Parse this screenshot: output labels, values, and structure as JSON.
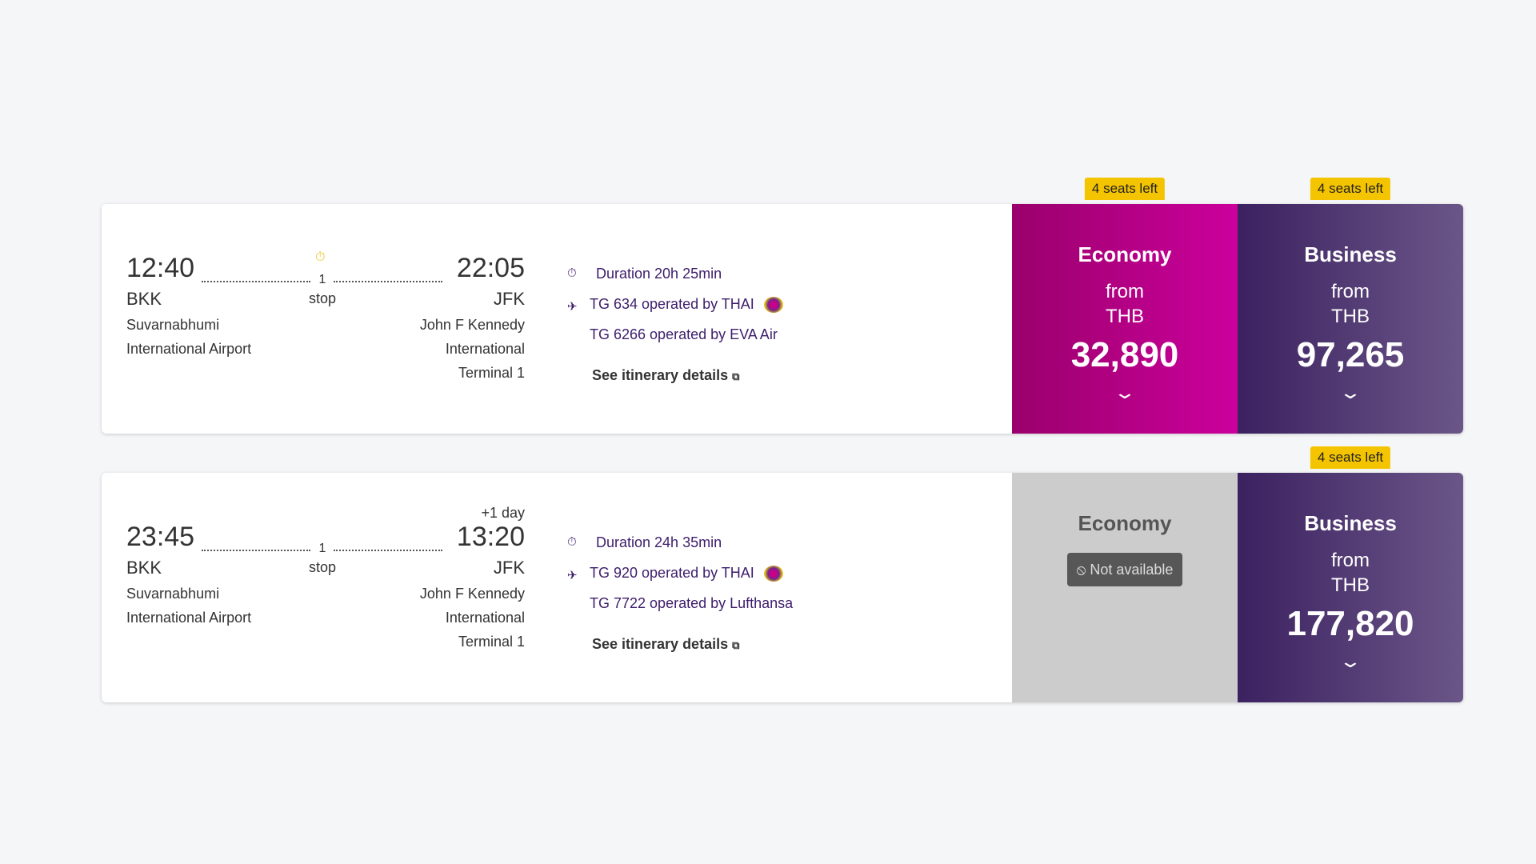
{
  "flights": [
    {
      "dep_time": "12:40",
      "dep_code": "BKK",
      "dep_airport_1": "Suvarnabhumi",
      "dep_airport_2": "International Airport",
      "arr_time": "22:05",
      "arr_code": "JFK",
      "arr_airport_1": "John F Kennedy",
      "arr_airport_2": "International",
      "arr_terminal": "Terminal 1",
      "day_offset": "",
      "stops": "1",
      "stops_label": "stop",
      "duration": "Duration 20h 25min",
      "flight_1": "TG 634 operated by THAI",
      "flight_2": "TG 6266 operated by EVA Air",
      "details_link": "See itinerary details",
      "economy": {
        "title": "Economy",
        "from": "from",
        "currency": "THB",
        "price": "32,890",
        "seats": "4 seats left"
      },
      "business": {
        "title": "Business",
        "from": "from",
        "currency": "THB",
        "price": "97,265",
        "seats": "4 seats left"
      }
    },
    {
      "dep_time": "23:45",
      "dep_code": "BKK",
      "dep_airport_1": "Suvarnabhumi",
      "dep_airport_2": "International Airport",
      "arr_time": "13:20",
      "arr_code": "JFK",
      "arr_airport_1": "John F Kennedy",
      "arr_airport_2": "International",
      "arr_terminal": "Terminal 1",
      "day_offset": "+1 day",
      "stops": "1",
      "stops_label": "stop",
      "duration": "Duration 24h 35min",
      "flight_1": "TG 920 operated by THAI",
      "flight_2": "TG 7722 operated by Lufthansa",
      "details_link": "See itinerary details",
      "economy": {
        "title": "Economy",
        "status": "Not available"
      },
      "business": {
        "title": "Business",
        "from": "from",
        "currency": "THB",
        "price": "177,820",
        "seats": "4 seats left"
      }
    }
  ],
  "colors": {
    "economy": "#b8008a",
    "business": "#4a3070",
    "unavailable": "#cccccc",
    "badge": "#f5c400",
    "text_accent": "#3d1d6b"
  }
}
